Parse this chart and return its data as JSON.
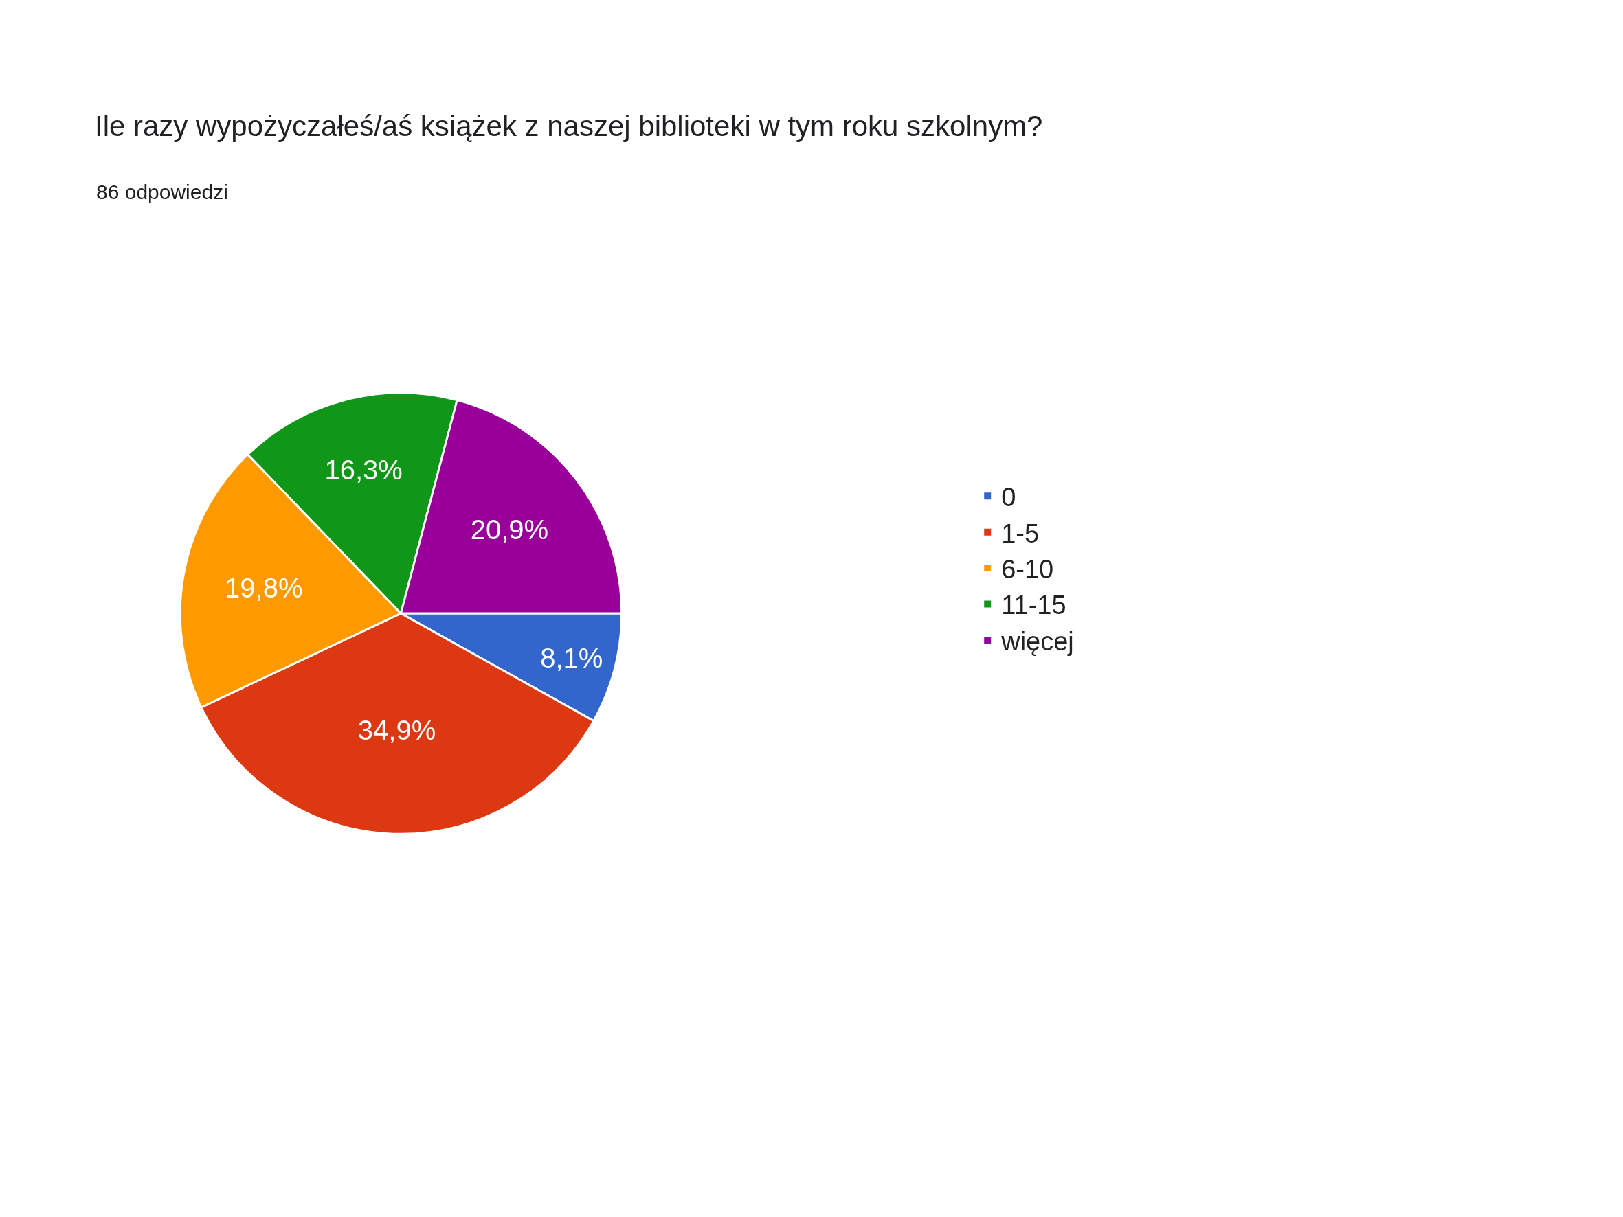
{
  "chart_data": {
    "type": "pie",
    "title": "Ile razy wypożyczałeś/aś książek z naszej biblioteki w tym roku szkolnym?",
    "subtitle": "86 odpowiedzi",
    "categories": [
      "0",
      "1-5",
      "6-10",
      "11-15",
      "więcej"
    ],
    "values": [
      8.1,
      34.9,
      19.8,
      16.3,
      20.9
    ],
    "value_labels": [
      "8,1%",
      "34,9%",
      "19,8%",
      "16,3%",
      "20,9%"
    ],
    "colors": [
      "#3366cc",
      "#dc3912",
      "#ff9900",
      "#109618",
      "#990099"
    ],
    "legend": "right"
  }
}
